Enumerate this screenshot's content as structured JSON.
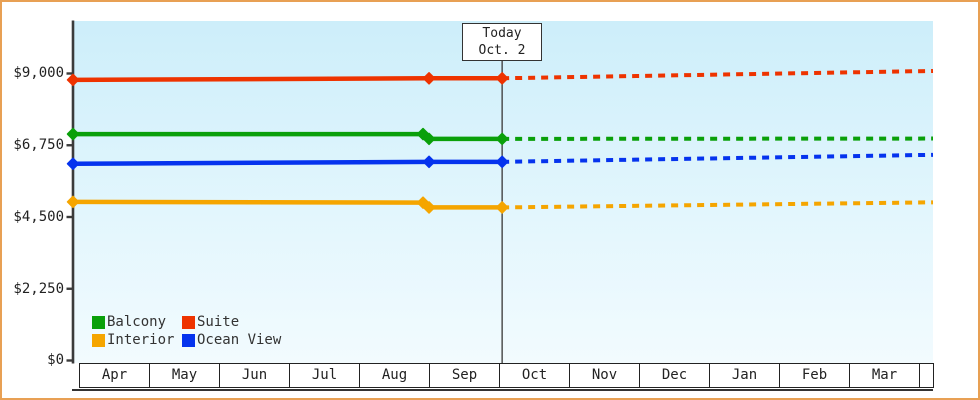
{
  "window": {
    "border_color": "#e8a054"
  },
  "chart_data": {
    "type": "line",
    "title": "",
    "xlabel": "",
    "ylabel": "",
    "x_categories": [
      "Apr",
      "May",
      "Jun",
      "Jul",
      "Aug",
      "Sep",
      "Oct",
      "Nov",
      "Dec",
      "Jan",
      "Feb",
      "Mar"
    ],
    "ylim": [
      0,
      9000
    ],
    "y_ticks": [
      9000,
      6750,
      4500,
      2250,
      0
    ],
    "y_tick_labels": [
      "$9,000",
      "$6,750",
      "$4,500",
      "$2,250",
      "$0"
    ],
    "today": {
      "label": "Today",
      "date": "Oct. 2",
      "x_frac": 0.499
    },
    "legend_items": [
      {
        "label": "Balcony",
        "color": "#0aa00a"
      },
      {
        "label": "Suite",
        "color": "#ee3300"
      },
      {
        "label": "Interior",
        "color": "#f5a500"
      },
      {
        "label": "Ocean View",
        "color": "#0533ee"
      }
    ],
    "series": [
      {
        "name": "Suite",
        "color": "#ee3300",
        "history": [
          {
            "x": 0,
            "v": 8800
          },
          {
            "x": 0.414,
            "v": 8850
          },
          {
            "x": 0.499,
            "v": 8850
          }
        ],
        "markers": [
          0,
          0.414,
          0.499
        ],
        "forecast": [
          {
            "x": 0.499,
            "v": 8850
          },
          {
            "x": 1,
            "v": 9080
          }
        ]
      },
      {
        "name": "Balcony",
        "color": "#0aa00a",
        "history": [
          {
            "x": 0,
            "v": 7100
          },
          {
            "x": 0.407,
            "v": 7100
          },
          {
            "x": 0.414,
            "v": 6950
          },
          {
            "x": 0.499,
            "v": 6950
          }
        ],
        "markers": [
          0,
          0.407,
          0.414,
          0.499
        ],
        "forecast": [
          {
            "x": 0.499,
            "v": 6950
          },
          {
            "x": 1,
            "v": 6960
          }
        ]
      },
      {
        "name": "Ocean View",
        "color": "#0533ee",
        "history": [
          {
            "x": 0,
            "v": 6170
          },
          {
            "x": 0.414,
            "v": 6230
          },
          {
            "x": 0.499,
            "v": 6230
          }
        ],
        "markers": [
          0,
          0.414,
          0.499
        ],
        "forecast": [
          {
            "x": 0.499,
            "v": 6230
          },
          {
            "x": 1,
            "v": 6450
          }
        ]
      },
      {
        "name": "Interior",
        "color": "#f5a500",
        "history": [
          {
            "x": 0,
            "v": 4975
          },
          {
            "x": 0.407,
            "v": 4950
          },
          {
            "x": 0.414,
            "v": 4800
          },
          {
            "x": 0.499,
            "v": 4800
          }
        ],
        "markers": [
          0,
          0.407,
          0.414,
          0.499
        ],
        "forecast": [
          {
            "x": 0.499,
            "v": 4800
          },
          {
            "x": 1,
            "v": 4960
          }
        ]
      }
    ]
  }
}
